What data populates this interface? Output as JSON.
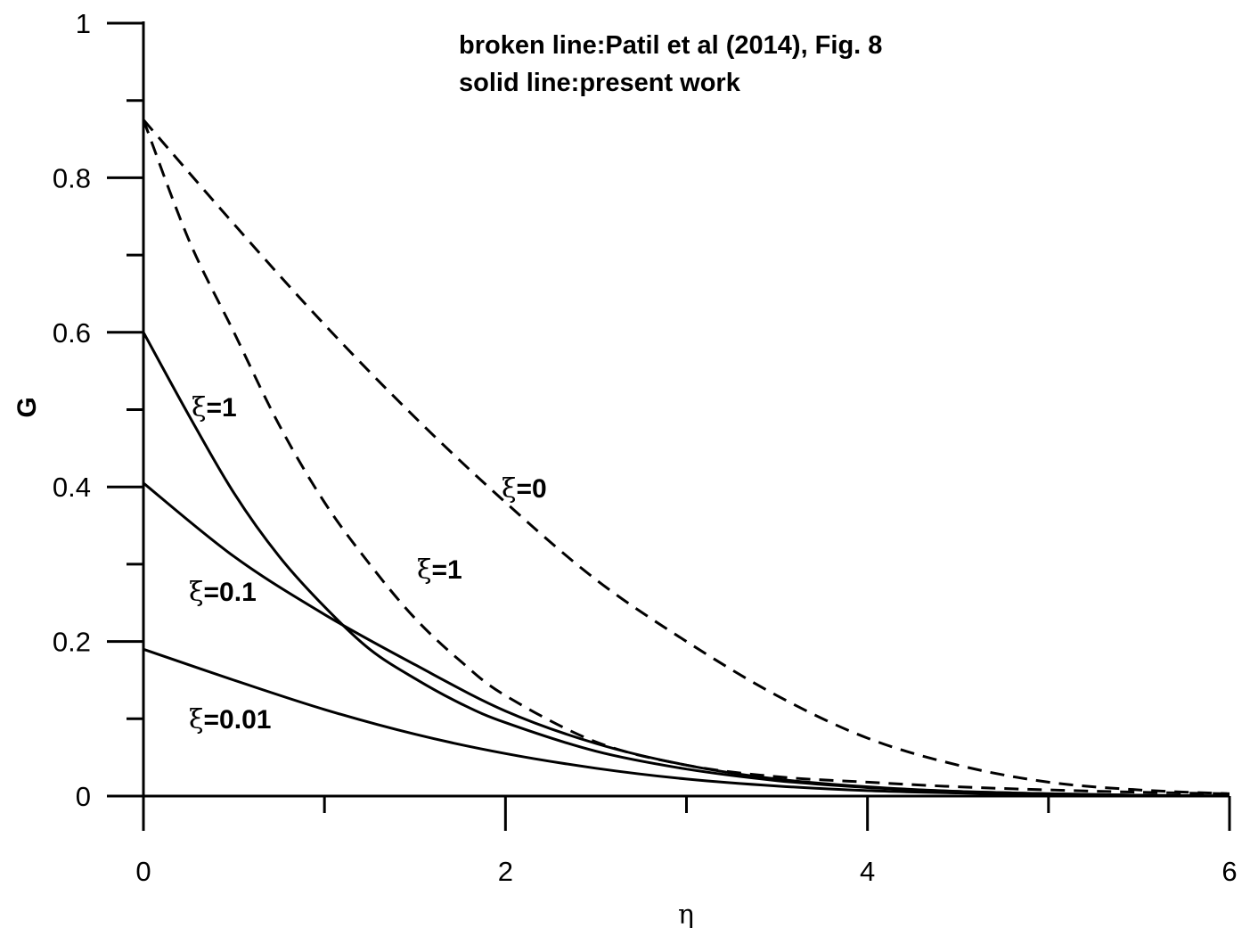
{
  "chart_data": {
    "type": "line",
    "xlabel": "η",
    "ylabel": "G",
    "xlim": [
      0,
      6
    ],
    "ylim": [
      0,
      1
    ],
    "x_ticks": [
      "0",
      "2",
      "4",
      "6"
    ],
    "y_ticks": [
      "0",
      "0.2",
      "0.4",
      "0.6",
      "0.8",
      "1"
    ],
    "annotations": [
      "broken line:Patil et al (2014), Fig. 8",
      "solid line:present work"
    ],
    "series": [
      {
        "name": "ξ=1",
        "style": "solid",
        "x": [
          0,
          0.25,
          0.5,
          0.75,
          1.0,
          1.25,
          1.5,
          1.75,
          2.0,
          2.5,
          3.0,
          3.5,
          4.0,
          4.5,
          5.0,
          5.5,
          6.0
        ],
        "y": [
          0.6,
          0.493,
          0.392,
          0.31,
          0.245,
          0.19,
          0.152,
          0.12,
          0.095,
          0.058,
          0.035,
          0.02,
          0.011,
          0.006,
          0.003,
          0.001,
          0.0
        ]
      },
      {
        "name": "ξ=0.1",
        "style": "solid",
        "x": [
          0,
          0.5,
          1.0,
          1.5,
          2.0,
          2.5,
          3.0,
          3.5,
          4.0,
          4.5,
          5.0,
          5.5,
          6.0
        ],
        "y": [
          0.405,
          0.31,
          0.235,
          0.17,
          0.11,
          0.068,
          0.04,
          0.022,
          0.012,
          0.006,
          0.003,
          0.001,
          0.0
        ]
      },
      {
        "name": "ξ=0.01",
        "style": "solid",
        "x": [
          0,
          0.5,
          1.0,
          1.5,
          2.0,
          2.5,
          3.0,
          3.5,
          4.0,
          4.5,
          5.0,
          5.5,
          6.0
        ],
        "y": [
          0.19,
          0.15,
          0.112,
          0.08,
          0.055,
          0.036,
          0.022,
          0.013,
          0.007,
          0.004,
          0.002,
          0.001,
          0.0
        ]
      },
      {
        "name": "ξ=1",
        "style": "dashed",
        "x": [
          0,
          0.25,
          0.5,
          0.75,
          1.0,
          1.25,
          1.5,
          1.75,
          2.0,
          2.5,
          3.0,
          3.5,
          4.0,
          4.5,
          5.0,
          5.5,
          6.0
        ],
        "y": [
          0.875,
          0.72,
          0.6,
          0.48,
          0.38,
          0.3,
          0.23,
          0.175,
          0.13,
          0.07,
          0.04,
          0.025,
          0.018,
          0.012,
          0.008,
          0.005,
          0.003
        ]
      },
      {
        "name": "ξ=0",
        "style": "dashed",
        "x": [
          0,
          0.5,
          1.0,
          1.5,
          2.0,
          2.5,
          3.0,
          3.5,
          4.0,
          4.5,
          5.0,
          5.5,
          6.0
        ],
        "y": [
          0.875,
          0.74,
          0.61,
          0.49,
          0.38,
          0.28,
          0.2,
          0.13,
          0.075,
          0.04,
          0.018,
          0.008,
          0.003
        ]
      }
    ],
    "curve_labels": [
      {
        "prefix": "ξ",
        "text": "=1",
        "series": 0
      },
      {
        "prefix": "ξ",
        "text": "=0.1",
        "series": 1
      },
      {
        "prefix": "ξ",
        "text": "=0.01",
        "series": 2
      },
      {
        "prefix": "ξ",
        "text": "=1",
        "series": 3
      },
      {
        "prefix": "ξ",
        "text": "=0",
        "series": 4
      }
    ],
    "grid": false,
    "legend": "none"
  }
}
